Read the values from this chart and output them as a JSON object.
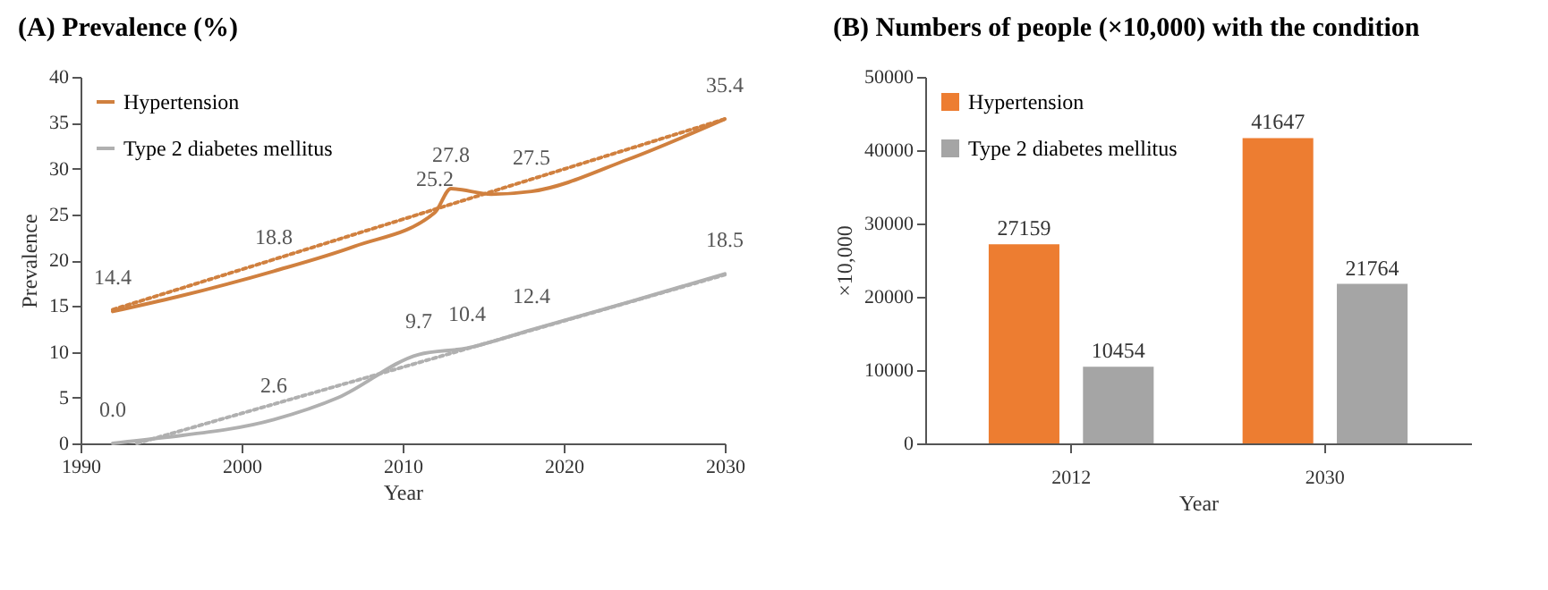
{
  "chart_data": [
    {
      "type": "line",
      "title": "(A) Prevalence (%)",
      "xlabel": "Year",
      "ylabel": "Prevalence",
      "xlim": [
        1990,
        2030
      ],
      "xticks": [
        1990,
        2000,
        2010,
        2020,
        2030
      ],
      "ylim": [
        0,
        40
      ],
      "yticks": [
        0,
        5,
        10,
        15,
        20,
        25,
        30,
        35,
        40
      ],
      "legend": "top left",
      "grid": false,
      "series": [
        {
          "name": "Hypertension",
          "color": "#d0803f",
          "x": [
            1992,
            1996,
            2002,
            2007,
            2012,
            2013,
            2015.5,
            2018,
            2024,
            2030
          ],
          "values": [
            14.4,
            16.0,
            18.8,
            21.5,
            25.2,
            27.8,
            27.2,
            27.5,
            31.0,
            35.4
          ],
          "value_labels": [
            "14.4",
            null,
            "18.8",
            null,
            "25.2",
            "27.8",
            null,
            "27.5",
            null,
            "35.4"
          ]
        },
        {
          "name": "Type 2 diabetes mellitus",
          "color": "#b0b0b0",
          "x": [
            1992,
            1995,
            2002,
            2006,
            2011,
            2014,
            2018,
            2024,
            2030
          ],
          "values": [
            0.0,
            0.6,
            2.6,
            5.0,
            9.7,
            10.4,
            12.4,
            15.4,
            18.5
          ],
          "value_labels": [
            "0.0",
            null,
            "2.6",
            null,
            "9.7",
            "10.4",
            "12.4",
            null,
            "18.5"
          ]
        },
        {
          "type": "line",
          "line_style": "dotted",
          "color": "#d0803f",
          "x": [
            1992,
            2030
          ],
          "values": [
            14.6,
            35.4
          ]
        },
        {
          "type": "line",
          "line_style": "dotted",
          "color": "#b0b0b0",
          "x": [
            1993.5,
            2030
          ],
          "values": [
            0.0,
            18.4
          ]
        }
      ]
    },
    {
      "type": "bar",
      "title": "(B) Numbers of people (×10,000) with the condition",
      "xlabel": "Year",
      "ylabel": "×10,000",
      "categories": [
        "2012",
        "2030"
      ],
      "ylim": [
        0,
        50000
      ],
      "yticks": [
        0,
        10000,
        20000,
        30000,
        40000,
        50000
      ],
      "legend": "top left",
      "grid": false,
      "data_labels": true,
      "series": [
        {
          "name": "Hypertension",
          "color": "#ed7d31",
          "values": [
            27159,
            41647
          ]
        },
        {
          "name": "Type 2 diabetes mellitus",
          "color": "#a5a5a5",
          "values": [
            10454,
            21764
          ]
        }
      ]
    }
  ]
}
